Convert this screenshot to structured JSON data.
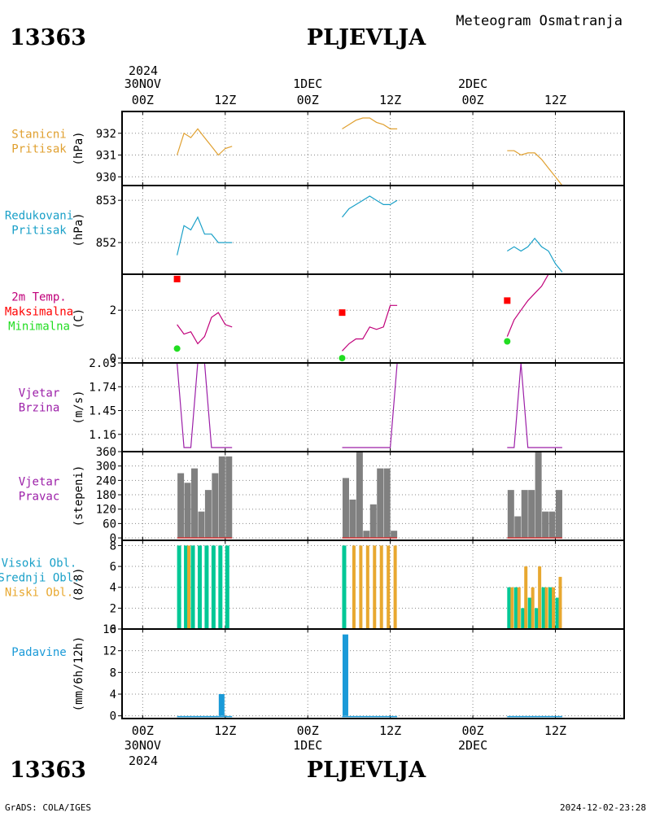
{
  "header": {
    "station_id": "13363",
    "station_name": "PLJEVLJA",
    "subtitle": "Meteogram Osmatranja"
  },
  "footer": {
    "credit": "GrADS: COLA/IGES",
    "timestamp": "2024-12-02-23:28"
  },
  "time_axis": {
    "top_year": "2024",
    "ticks": [
      {
        "hour": 0,
        "day": "30NOV",
        "zulu": "00Z"
      },
      {
        "hour": 12,
        "day": "",
        "zulu": "12Z"
      },
      {
        "hour": 24,
        "day": "1DEC",
        "zulu": "00Z"
      },
      {
        "hour": 36,
        "day": "",
        "zulu": "12Z"
      },
      {
        "hour": 48,
        "day": "2DEC",
        "zulu": "00Z"
      },
      {
        "hour": 60,
        "day": "",
        "zulu": "12Z"
      }
    ],
    "bottom_year": "2024",
    "range_hours": [
      -3,
      70
    ]
  },
  "colors": {
    "station_pressure": "#e0a030",
    "reduced_pressure": "#1aa0c8",
    "temperature": "#c0007a",
    "tmax": "#ff0000",
    "tmin": "#22dd22",
    "wind": "#9c1fa8",
    "wind_dir_bar": "#808080",
    "wind_dir_base": "#cc3030",
    "cloud_high": "#00c896",
    "cloud_low": "#e8a830",
    "precip": "#1a9ad8"
  },
  "panels": [
    {
      "id": "stanicni",
      "labels": [
        "Stanicni",
        "Pritisak"
      ],
      "unit": "(hPa)"
    },
    {
      "id": "redukovani",
      "labels": [
        "Redukovani",
        "Pritisak"
      ],
      "unit": "(hPa)"
    },
    {
      "id": "temp",
      "labels": [
        "2m Temp.",
        "Maksimalna",
        "Minimalna"
      ],
      "unit": "(C)"
    },
    {
      "id": "brzina",
      "labels": [
        "Vjetar",
        "Brzina"
      ],
      "unit": "(m/s)"
    },
    {
      "id": "pravac",
      "labels": [
        "Vjetar",
        "Pravac"
      ],
      "unit": "(stepeni)"
    },
    {
      "id": "oblaci",
      "labels": [
        "Visoki Obl.",
        "Srednji Obl.",
        "Niski Obl."
      ],
      "unit": "(8/8)"
    },
    {
      "id": "padavine",
      "labels": [
        "Padavine"
      ],
      "unit": "(mm/6h/12h)"
    }
  ],
  "chart_data": [
    {
      "type": "line",
      "title": "Stanicni Pritisak",
      "ylabel": "(hPa)",
      "ylim": [
        929.6,
        933.0
      ],
      "yticks": [
        930,
        931,
        932
      ],
      "segments": [
        {
          "x": [
            5,
            6,
            7,
            8,
            9,
            10,
            11,
            12,
            13
          ],
          "y": [
            931.0,
            932.0,
            931.8,
            932.2,
            931.8,
            931.4,
            931.0,
            931.3,
            931.4
          ]
        },
        {
          "x": [
            29,
            30,
            31,
            32,
            33,
            34,
            35,
            36,
            37
          ],
          "y": [
            932.2,
            932.4,
            932.6,
            932.7,
            932.7,
            932.5,
            932.4,
            932.2,
            932.2
          ]
        },
        {
          "x": [
            53,
            54,
            55,
            56,
            57,
            58,
            59,
            60,
            61
          ],
          "y": [
            931.2,
            931.2,
            931.0,
            931.1,
            931.1,
            930.8,
            930.4,
            930.0,
            929.6
          ]
        }
      ]
    },
    {
      "type": "line",
      "title": "Redukovani Pritisak",
      "ylabel": "(hPa)",
      "ylim": [
        851.25,
        853.35
      ],
      "yticks": [
        852,
        853
      ],
      "segments": [
        {
          "x": [
            5,
            6,
            7,
            8,
            9,
            10,
            11,
            12,
            13
          ],
          "y": [
            851.7,
            852.4,
            852.3,
            852.6,
            852.2,
            852.2,
            852.0,
            852.0,
            852.0
          ]
        },
        {
          "x": [
            29,
            30,
            31,
            32,
            33,
            34,
            35,
            36,
            37
          ],
          "y": [
            852.6,
            852.8,
            852.9,
            853.0,
            853.1,
            853.0,
            852.9,
            852.9,
            853.0
          ]
        },
        {
          "x": [
            53,
            54,
            55,
            56,
            57,
            58,
            59,
            60,
            61
          ],
          "y": [
            851.8,
            851.9,
            851.8,
            851.9,
            852.1,
            851.9,
            851.8,
            851.5,
            851.3
          ]
        }
      ]
    },
    {
      "type": "line",
      "title": "2m Temp.",
      "ylabel": "(C)",
      "ylim": [
        -0.2,
        3.5
      ],
      "yticks": [
        0,
        2
      ],
      "segments": [
        {
          "x": [
            5,
            6,
            7,
            8,
            9,
            10,
            11,
            12,
            13
          ],
          "y": [
            1.4,
            1.0,
            1.1,
            0.6,
            0.9,
            1.7,
            1.9,
            1.4,
            1.3
          ]
        },
        {
          "x": [
            29,
            30,
            31,
            32,
            33,
            34,
            35,
            36,
            37
          ],
          "y": [
            0.3,
            0.6,
            0.8,
            0.8,
            1.3,
            1.2,
            1.3,
            2.2,
            2.2
          ]
        },
        {
          "x": [
            53,
            54,
            55,
            56,
            57,
            58,
            59,
            60,
            61
          ],
          "y": [
            0.9,
            1.6,
            2.0,
            2.4,
            2.7,
            3.0,
            3.5,
            3.5,
            3.5
          ]
        }
      ],
      "tmax": [
        {
          "x": 5,
          "y": 3.3
        },
        {
          "x": 29,
          "y": 1.9
        },
        {
          "x": 53,
          "y": 2.4
        }
      ],
      "tmin": [
        {
          "x": 5,
          "y": 0.4
        },
        {
          "x": 29,
          "y": 0.0
        },
        {
          "x": 53,
          "y": 0.7
        }
      ]
    },
    {
      "type": "line",
      "title": "Vjetar Brzina",
      "ylabel": "(m/s)",
      "ylim": [
        0.95,
        2.03
      ],
      "yticks": [
        1.16,
        1.45,
        1.74,
        2.03
      ],
      "segments": [
        {
          "x": [
            5,
            6,
            7,
            8,
            9,
            10,
            11,
            12,
            13
          ],
          "y": [
            2.03,
            1.0,
            1.0,
            2.03,
            2.03,
            1.0,
            1.0,
            1.0,
            1.0
          ]
        },
        {
          "x": [
            29,
            30,
            31,
            32,
            33,
            34,
            35,
            36,
            37
          ],
          "y": [
            1.0,
            1.0,
            1.0,
            1.0,
            1.0,
            1.0,
            1.0,
            1.0,
            2.03
          ]
        },
        {
          "x": [
            53,
            54,
            55,
            56,
            57,
            58,
            59,
            60,
            61
          ],
          "y": [
            1.0,
            1.0,
            2.03,
            1.0,
            1.0,
            1.0,
            1.0,
            1.0,
            1.0
          ]
        }
      ]
    },
    {
      "type": "bar",
      "title": "Vjetar Pravac",
      "ylabel": "(stepeni)",
      "ylim": [
        -10,
        360
      ],
      "yticks": [
        0,
        60,
        120,
        180,
        240,
        300,
        360
      ],
      "x": [
        5,
        6,
        7,
        8,
        9,
        10,
        11,
        12,
        29,
        30,
        31,
        32,
        33,
        34,
        35,
        36,
        53,
        54,
        55,
        56,
        57,
        58,
        59,
        60
      ],
      "values": [
        270,
        230,
        290,
        110,
        200,
        270,
        340,
        340,
        250,
        160,
        360,
        30,
        140,
        290,
        290,
        30,
        200,
        90,
        200,
        200,
        360,
        110,
        110,
        200
      ]
    },
    {
      "type": "bar",
      "title": "Visoki Obl. / Srednji Obl. / Niski Obl.",
      "ylabel": "(8/8)",
      "ylim": [
        0,
        8.5
      ],
      "yticks": [
        0,
        2,
        4,
        6,
        8
      ],
      "x": [
        5,
        6,
        7,
        8,
        9,
        10,
        11,
        12,
        29,
        30,
        31,
        32,
        33,
        34,
        35,
        36,
        53,
        54,
        55,
        56,
        57,
        58,
        59,
        60
      ],
      "series": [
        {
          "name": "Visoki Obl.",
          "values": [
            8,
            8,
            8,
            8,
            8,
            8,
            8,
            8,
            8,
            0,
            0,
            0,
            0,
            0,
            0,
            0,
            4,
            4,
            2,
            3,
            2,
            4,
            4,
            3
          ]
        },
        {
          "name": "Niski Obl.",
          "values": [
            0,
            8,
            0,
            0,
            0,
            0,
            0,
            0,
            0,
            8,
            8,
            8,
            8,
            8,
            8,
            8,
            4,
            4,
            6,
            4,
            6,
            4,
            4,
            5
          ]
        }
      ]
    },
    {
      "type": "bar",
      "title": "Padavine",
      "ylabel": "(mm/6h/12h)",
      "ylim": [
        -0.5,
        16
      ],
      "yticks": [
        0,
        4,
        8,
        12,
        16
      ],
      "x": [
        5,
        6,
        7,
        8,
        9,
        10,
        11,
        12,
        29,
        30,
        31,
        32,
        33,
        34,
        35,
        36,
        53,
        54,
        55,
        56,
        57,
        58,
        59,
        60
      ],
      "values": [
        0,
        0,
        0,
        0,
        0,
        0,
        4,
        0,
        15,
        0,
        0,
        0,
        0,
        0,
        0,
        0,
        0,
        0,
        0,
        0,
        0,
        0,
        0,
        0
      ]
    }
  ]
}
